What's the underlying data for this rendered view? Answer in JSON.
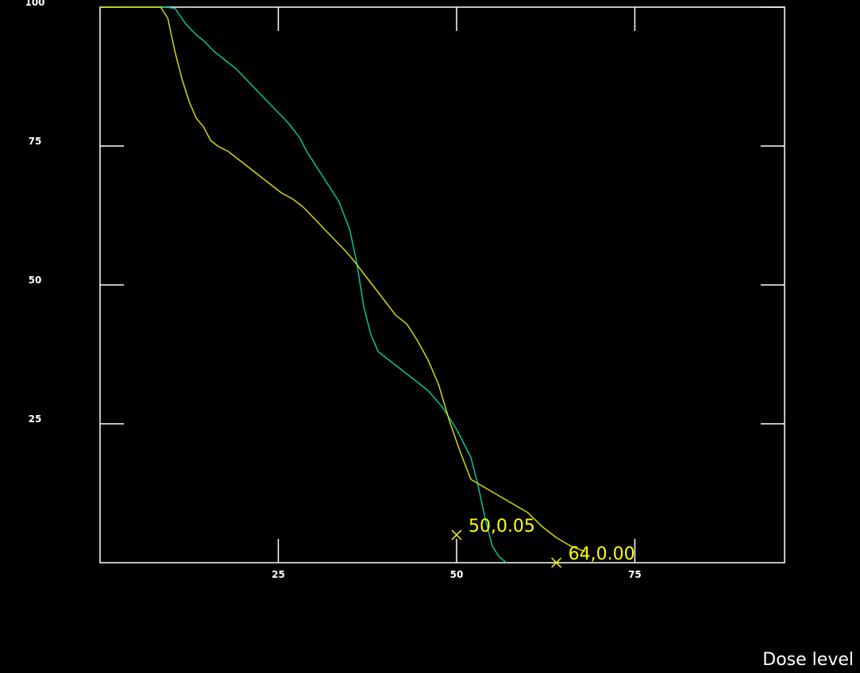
{
  "chart_data": {
    "type": "line",
    "xlabel": "Dose level",
    "ylabel": "",
    "xlim": [
      0,
      96
    ],
    "ylim": [
      0,
      100
    ],
    "grid": false,
    "x_ticks": [
      25,
      50,
      75
    ],
    "y_ticks": [
      25,
      50,
      75,
      100
    ],
    "x_tick_labels": [
      "25",
      "50",
      "75"
    ],
    "y_tick_labels": [
      "25",
      "50",
      "75",
      "100"
    ],
    "series": [
      {
        "color": "#00c896",
        "points": [
          [
            0,
            100
          ],
          [
            9,
            100
          ],
          [
            10.5,
            99.8
          ],
          [
            12,
            97
          ],
          [
            13.5,
            95
          ],
          [
            14.5,
            94
          ],
          [
            16,
            92
          ],
          [
            17.5,
            90.5
          ],
          [
            19,
            89
          ],
          [
            20.5,
            87
          ],
          [
            22,
            85
          ],
          [
            23.5,
            83
          ],
          [
            25,
            81
          ],
          [
            26.5,
            79
          ],
          [
            28,
            76.5
          ],
          [
            29,
            74
          ],
          [
            30.5,
            71
          ],
          [
            32,
            68
          ],
          [
            33.5,
            65
          ],
          [
            35,
            60
          ],
          [
            35.5,
            57
          ],
          [
            36,
            54
          ],
          [
            36.5,
            50
          ],
          [
            37,
            46
          ],
          [
            38,
            41
          ],
          [
            39,
            38
          ],
          [
            40,
            37
          ],
          [
            42,
            35
          ],
          [
            44,
            33
          ],
          [
            46,
            31
          ],
          [
            48,
            28
          ],
          [
            50,
            24
          ],
          [
            51,
            21.5
          ],
          [
            52,
            19
          ],
          [
            53,
            14
          ],
          [
            54,
            8
          ],
          [
            55,
            3
          ],
          [
            56,
            1
          ],
          [
            57,
            0
          ]
        ]
      },
      {
        "color": "#d8d800",
        "points": [
          [
            0,
            100
          ],
          [
            8.5,
            100
          ],
          [
            9.5,
            98
          ],
          [
            10.5,
            92
          ],
          [
            11.5,
            87
          ],
          [
            12.5,
            83
          ],
          [
            13.5,
            80
          ],
          [
            14.5,
            78.5
          ],
          [
            15.5,
            76
          ],
          [
            16.5,
            75
          ],
          [
            18,
            74
          ],
          [
            19.5,
            72.5
          ],
          [
            21,
            71
          ],
          [
            22.5,
            69.5
          ],
          [
            24,
            68
          ],
          [
            25.5,
            66.5
          ],
          [
            27,
            65.5
          ],
          [
            28.5,
            64
          ],
          [
            30,
            62
          ],
          [
            31.5,
            60
          ],
          [
            33,
            58
          ],
          [
            34.5,
            56
          ],
          [
            35.5,
            54.5
          ],
          [
            37,
            52
          ],
          [
            38.5,
            49.5
          ],
          [
            40,
            47
          ],
          [
            41.5,
            44.5
          ],
          [
            43,
            43
          ],
          [
            44.5,
            40
          ],
          [
            46,
            36.5
          ],
          [
            47.5,
            32
          ],
          [
            49,
            25.5
          ],
          [
            50.5,
            20
          ],
          [
            52,
            15
          ],
          [
            54,
            13.5
          ],
          [
            56,
            12
          ],
          [
            58,
            10.5
          ],
          [
            60,
            9
          ],
          [
            62,
            6.5
          ],
          [
            64,
            4.5
          ],
          [
            66,
            3
          ],
          [
            68,
            2
          ]
        ]
      }
    ],
    "annotations": [
      {
        "x": 50,
        "y": 5,
        "label": "50,0.05",
        "color": "#ffff00"
      },
      {
        "x": 64,
        "y": 0,
        "label": "64,0.00",
        "color": "#ffff00"
      }
    ]
  }
}
